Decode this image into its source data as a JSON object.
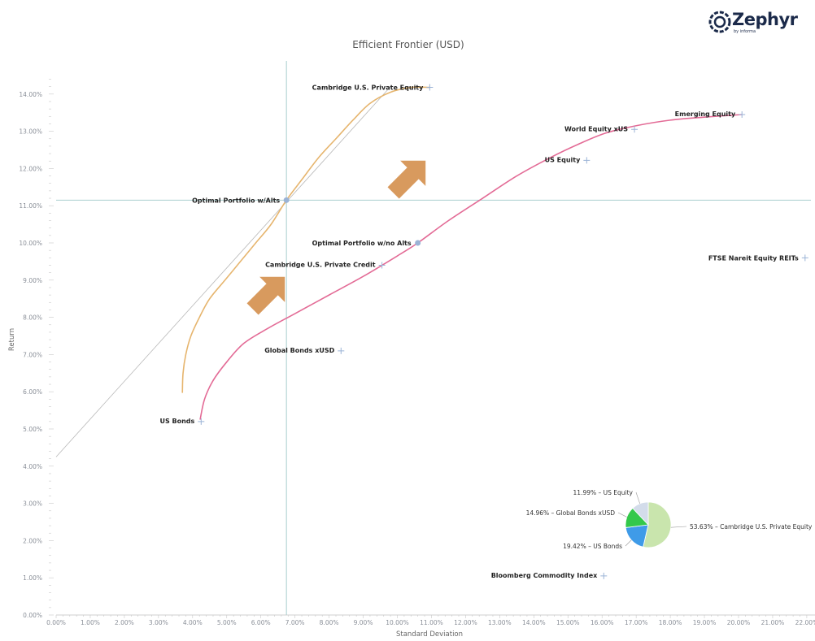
{
  "brand": {
    "name": "Zephyr",
    "tagline": "by informa"
  },
  "colors": {
    "frontier_alts": "#e6b56e",
    "frontier_no_alts": "#e36b96",
    "crosshair": "#a9cfcf",
    "tangent": "#b8b8b8",
    "marker": "#9bb3d6",
    "arrow": "#d89a5e"
  },
  "chart_data": {
    "type": "scatter",
    "title": "Efficient Frontier (USD)",
    "xlabel": "Standard Deviation",
    "ylabel": "Return",
    "xlim": [
      0,
      22
    ],
    "ylim": [
      0,
      14.5
    ],
    "x_ticks": [
      "0.00%",
      "1.00%",
      "2.00%",
      "3.00%",
      "4.00%",
      "5.00%",
      "6.00%",
      "7.00%",
      "8.00%",
      "9.00%",
      "10.00%",
      "11.00%",
      "12.00%",
      "13.00%",
      "14.00%",
      "15.00%",
      "16.00%",
      "17.00%",
      "18.00%",
      "19.00%",
      "20.00%",
      "21.00%",
      "22.00%"
    ],
    "y_ticks": [
      "0.00%",
      "1.00%",
      "2.00%",
      "3.00%",
      "4.00%",
      "5.00%",
      "6.00%",
      "7.00%",
      "8.00%",
      "9.00%",
      "10.00%",
      "11.00%",
      "12.00%",
      "13.00%",
      "14.00%"
    ],
    "assets": [
      {
        "name": "Cambridge U.S. Private Equity",
        "x": 10.95,
        "y": 14.18
      },
      {
        "name": "Emerging Equity",
        "x": 20.1,
        "y": 13.45
      },
      {
        "name": "World Equity xUS",
        "x": 16.95,
        "y": 13.05
      },
      {
        "name": "US Equity",
        "x": 15.55,
        "y": 12.22
      },
      {
        "name": "FTSE Nareit Equity REITs",
        "x": 21.95,
        "y": 9.6
      },
      {
        "name": "Cambridge U.S. Private Credit",
        "x": 9.55,
        "y": 9.4
      },
      {
        "name": "Global Bonds xUSD",
        "x": 8.35,
        "y": 7.1
      },
      {
        "name": "US Bonds",
        "x": 4.25,
        "y": 5.2
      },
      {
        "name": "Bloomberg Commodity Index",
        "x": 16.05,
        "y": 1.05
      }
    ],
    "optimal_portfolios": [
      {
        "name": "Optimal Portfolio w/Alts",
        "x": 6.75,
        "y": 11.15
      },
      {
        "name": "Optimal Portfolio w/no Alts",
        "x": 10.6,
        "y": 10.0
      }
    ],
    "frontier_with_alts": [
      [
        3.7,
        5.97
      ],
      [
        3.72,
        6.5
      ],
      [
        3.8,
        7.0
      ],
      [
        3.95,
        7.5
      ],
      [
        4.2,
        8.0
      ],
      [
        4.5,
        8.5
      ],
      [
        4.95,
        9.0
      ],
      [
        5.4,
        9.5
      ],
      [
        5.85,
        10.0
      ],
      [
        6.3,
        10.5
      ],
      [
        6.75,
        11.15
      ],
      [
        7.2,
        11.7
      ],
      [
        7.7,
        12.3
      ],
      [
        8.2,
        12.8
      ],
      [
        8.7,
        13.3
      ],
      [
        9.2,
        13.75
      ],
      [
        9.8,
        14.05
      ],
      [
        10.4,
        14.18
      ],
      [
        10.95,
        14.18
      ]
    ],
    "frontier_without_alts": [
      [
        4.22,
        5.25
      ],
      [
        4.35,
        5.8
      ],
      [
        4.6,
        6.3
      ],
      [
        5.0,
        6.8
      ],
      [
        5.5,
        7.3
      ],
      [
        6.2,
        7.7
      ],
      [
        7.0,
        8.1
      ],
      [
        8.0,
        8.6
      ],
      [
        9.0,
        9.1
      ],
      [
        10.0,
        9.65
      ],
      [
        10.6,
        10.0
      ],
      [
        11.5,
        10.6
      ],
      [
        12.5,
        11.2
      ],
      [
        13.5,
        11.8
      ],
      [
        14.5,
        12.3
      ],
      [
        15.3,
        12.65
      ],
      [
        16.1,
        12.95
      ],
      [
        17.0,
        13.15
      ],
      [
        18.0,
        13.3
      ],
      [
        19.0,
        13.38
      ],
      [
        20.1,
        13.45
      ]
    ],
    "tangent_line": [
      [
        0.0,
        4.25
      ],
      [
        9.8,
        14.2
      ]
    ],
    "crosshair": {
      "x": 6.75,
      "y": 11.15
    },
    "pie": {
      "slices": [
        {
          "label": "53.63% – Cambridge U.S. Private Equity",
          "value": 53.63,
          "color": "#c9e5ad"
        },
        {
          "label": "19.42% – US Bonds",
          "value": 19.42,
          "color": "#3f9be8"
        },
        {
          "label": "14.96% – Global Bonds xUSD",
          "value": 14.96,
          "color": "#33c84a"
        },
        {
          "label": "11.99% – US Equity",
          "value": 11.99,
          "color": "#d3dcea"
        }
      ]
    }
  }
}
